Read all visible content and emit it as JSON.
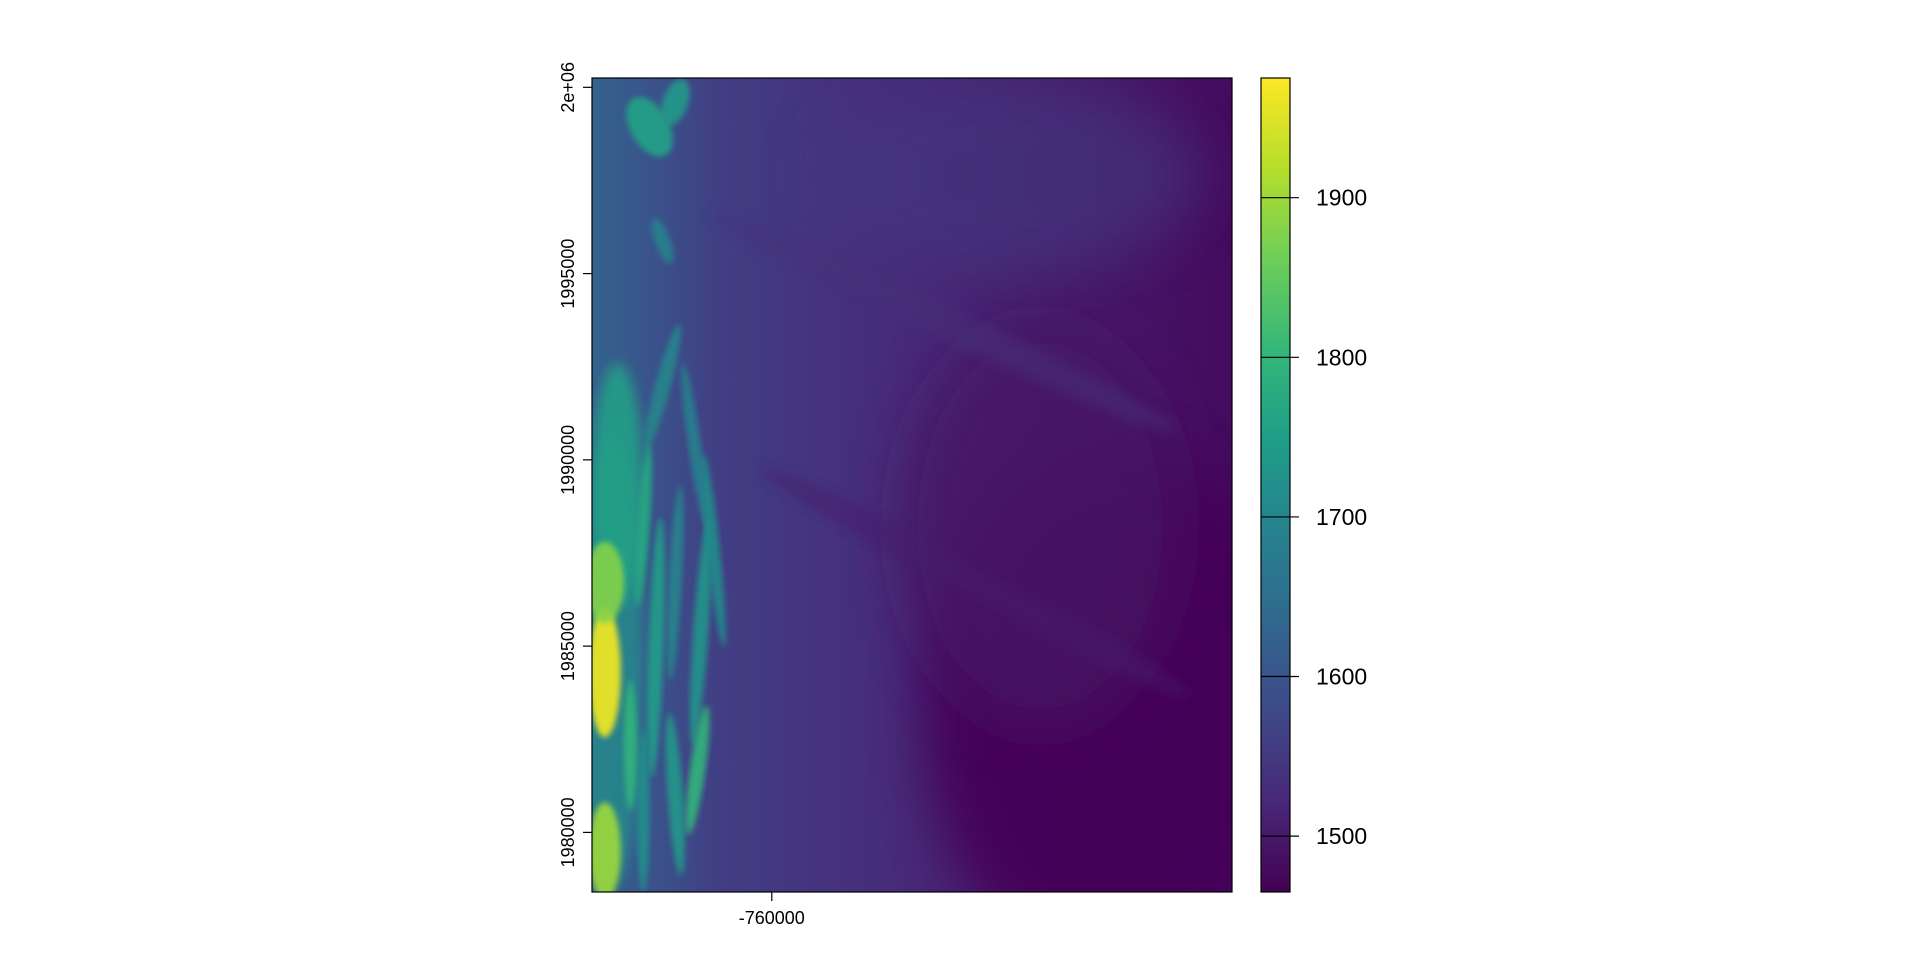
{
  "chart_data": {
    "type": "heatmap",
    "title": "",
    "xlabel": "",
    "ylabel": "",
    "raster_description_value_range": [
      1465,
      1975
    ],
    "xlim": [
      -765000,
      -747200
    ],
    "ylim": [
      1978400,
      2000250
    ],
    "x_ticks": [
      {
        "value": -760000,
        "label": "-760000"
      }
    ],
    "y_ticks": [
      {
        "value": 1980000,
        "label": "1980000"
      },
      {
        "value": 1985000,
        "label": "1985000"
      },
      {
        "value": 1990000,
        "label": "1990000"
      },
      {
        "value": 1995000,
        "label": "1995000"
      },
      {
        "value": 2000000,
        "label": "2e+06"
      }
    ],
    "colorbar": {
      "palette": "viridis",
      "range": [
        1465,
        1975
      ],
      "ticks": [
        {
          "value": 1500,
          "label": "1500"
        },
        {
          "value": 1600,
          "label": "1600"
        },
        {
          "value": 1700,
          "label": "1700"
        },
        {
          "value": 1800,
          "label": "1800"
        },
        {
          "value": 1900,
          "label": "1900"
        }
      ]
    },
    "colors": [
      "#440154",
      "#482878",
      "#3e4989",
      "#31688e",
      "#26828e",
      "#1f9e89",
      "#35b779",
      "#6ece58",
      "#b5de2b",
      "#fde725"
    ]
  }
}
